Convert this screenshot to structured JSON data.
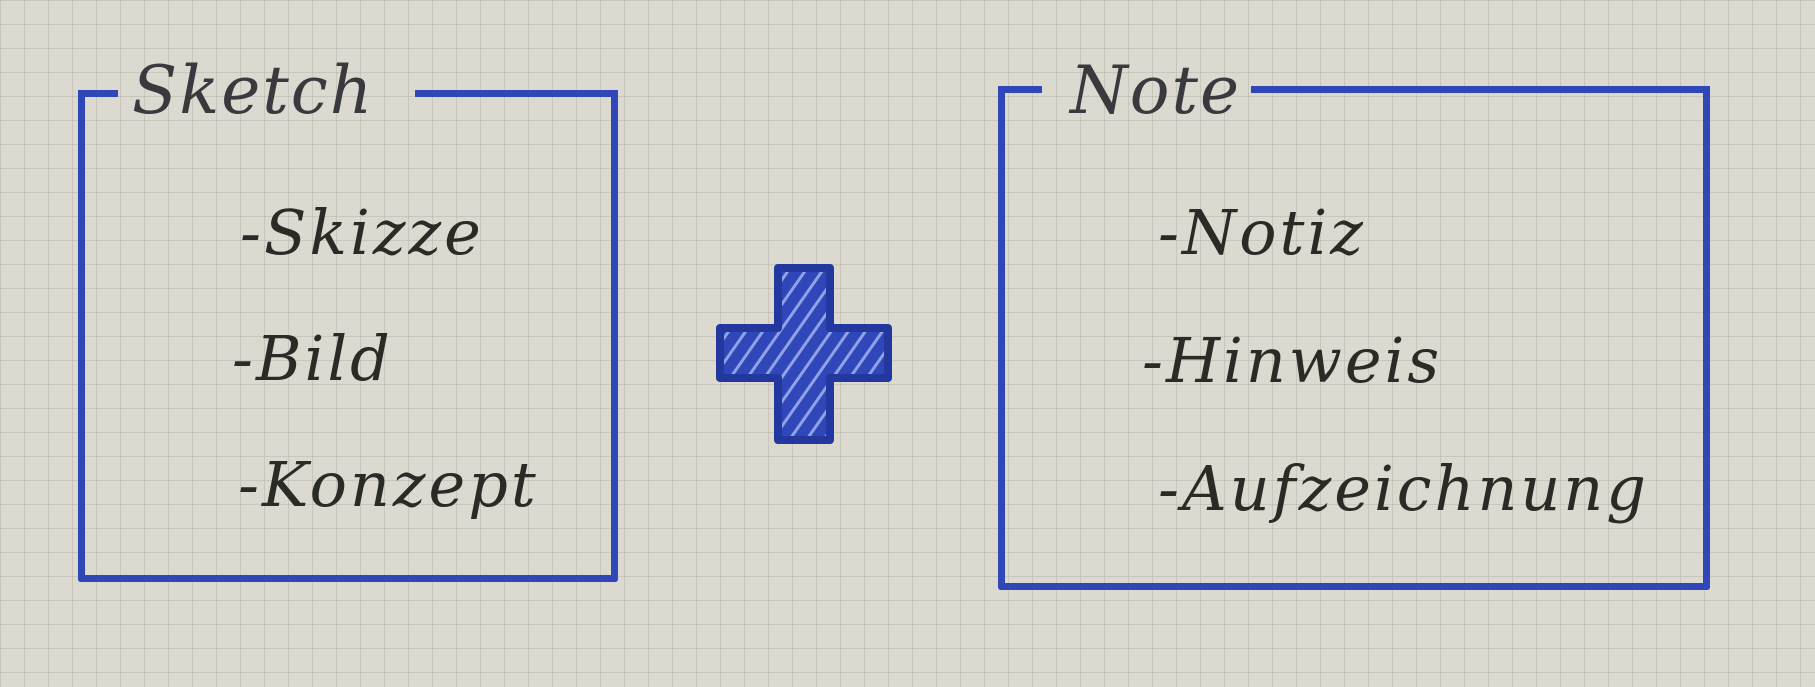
{
  "sketch": {
    "title": "Sketch",
    "items": [
      "-Skizze",
      "-Bild",
      "-Konzept"
    ]
  },
  "note": {
    "title": "Note",
    "items": [
      "-Notiz",
      "-Hinweis",
      "-Aufzeichnung"
    ]
  },
  "colors": {
    "ink_blue": "#2f47b8",
    "ink_dark": "#2a2a26",
    "paper": "#dcd9d0"
  },
  "icons": {
    "operator": "plus-icon"
  }
}
